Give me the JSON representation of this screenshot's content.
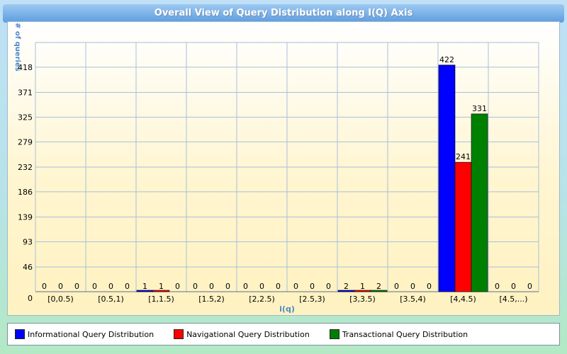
{
  "chart_data": {
    "type": "bar",
    "title": "Overall View of Query Distribution along I(Q) Axis",
    "xlabel": "i(q)",
    "ylabel": "# of queries",
    "categories": [
      "[0,0.5)",
      "[0.5,1)",
      "[1,1.5)",
      "[1.5,2)",
      "[2,2.5)",
      "[2.5,3)",
      "[3,3.5)",
      "[3.5,4)",
      "[4,4.5)",
      "[4.5,...)"
    ],
    "series": [
      {
        "name": "Informational Query Distribution",
        "color": "#0000ff",
        "values": [
          0,
          0,
          1,
          0,
          0,
          0,
          2,
          0,
          422,
          0
        ]
      },
      {
        "name": "Navigational Query Distribution",
        "color": "#ff0000",
        "values": [
          0,
          0,
          1,
          0,
          0,
          0,
          1,
          0,
          241,
          0
        ]
      },
      {
        "name": "Transactional Query Distribution",
        "color": "#008000",
        "values": [
          0,
          0,
          0,
          0,
          0,
          0,
          2,
          0,
          331,
          0
        ]
      }
    ],
    "yticks": [
      0,
      46,
      93,
      139,
      186,
      232,
      279,
      325,
      371,
      418
    ],
    "ylim": [
      0,
      464
    ],
    "grid": true,
    "legend": "bottom"
  }
}
